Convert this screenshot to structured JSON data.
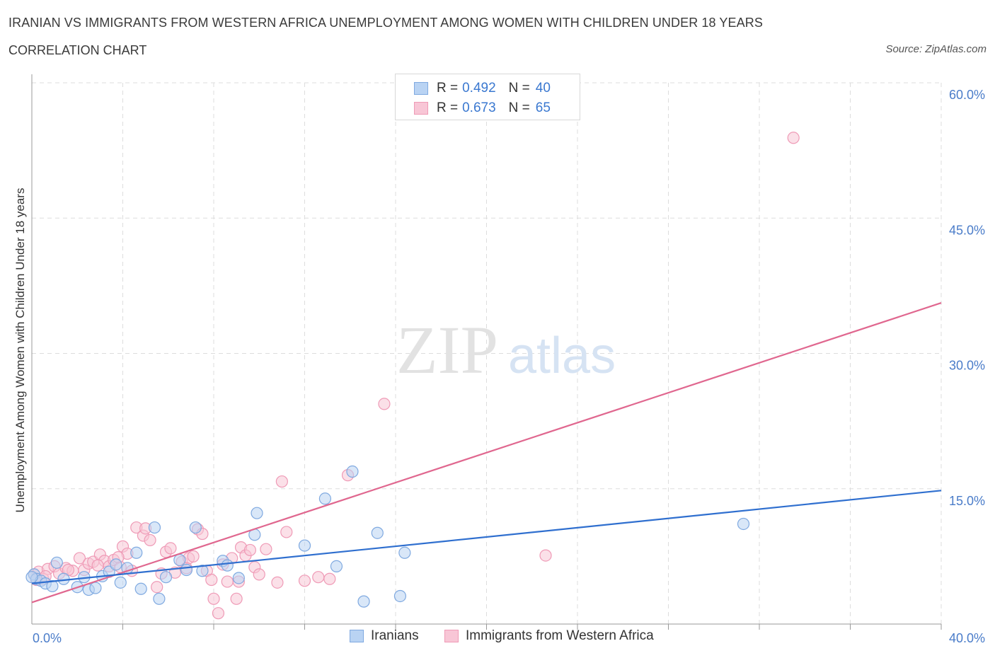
{
  "header": {
    "title": "IRANIAN VS IMMIGRANTS FROM WESTERN AFRICA UNEMPLOYMENT AMONG WOMEN WITH CHILDREN UNDER 18 YEARS",
    "subtitle": "CORRELATION CHART",
    "source": "Source: ZipAtlas.com"
  },
  "watermark": {
    "zip": "ZIP",
    "atlas": "atlas"
  },
  "legend": {
    "rows": [
      {
        "r_label": "R =",
        "r_value": "0.492",
        "n_label": "N =",
        "n_value": "40"
      },
      {
        "r_label": "R =",
        "r_value": "0.673",
        "n_label": "N =",
        "n_value": "65"
      }
    ]
  },
  "colors": {
    "iranians_fill": "#b9d3f3",
    "iranians_stroke": "#7fa9e0",
    "iranians_line": "#2f6fcf",
    "wafrica_fill": "#f8c6d6",
    "wafrica_stroke": "#ef9ab6",
    "wafrica_line": "#e0678f",
    "tick_text": "#4a7cc9",
    "grid": "#dddddd"
  },
  "chart_data": {
    "type": "scatter",
    "title": "IRANIAN VS IMMIGRANTS FROM WESTERN AFRICA UNEMPLOYMENT AMONG WOMEN WITH CHILDREN UNDER 18 YEARS",
    "xlabel": "",
    "ylabel": "Unemployment Among Women with Children Under 18 years",
    "xlim": [
      0,
      40
    ],
    "ylim": [
      0,
      60
    ],
    "x_tick_labels": [
      "0.0%",
      "40.0%"
    ],
    "y_ticks": [
      15,
      30,
      45,
      60
    ],
    "y_tick_labels": [
      "15.0%",
      "30.0%",
      "45.0%",
      "60.0%"
    ],
    "legend_position": "top-center",
    "series": [
      {
        "name": "Iranians",
        "R": 0.492,
        "N": 40,
        "trend": {
          "x0": 0,
          "y0": 4.5,
          "x1": 40,
          "y1": 14.8
        },
        "points": [
          [
            0.1,
            5.5
          ],
          [
            0.2,
            5.0
          ],
          [
            0.4,
            4.8
          ],
          [
            0.6,
            4.5
          ],
          [
            0.9,
            4.2
          ],
          [
            1.1,
            6.8
          ],
          [
            1.4,
            5.0
          ],
          [
            2.0,
            4.1
          ],
          [
            2.3,
            5.2
          ],
          [
            2.5,
            3.8
          ],
          [
            2.8,
            4.0
          ],
          [
            3.1,
            5.3
          ],
          [
            3.4,
            5.8
          ],
          [
            3.7,
            6.6
          ],
          [
            3.9,
            4.6
          ],
          [
            4.2,
            6.2
          ],
          [
            4.6,
            7.9
          ],
          [
            4.8,
            3.9
          ],
          [
            5.4,
            10.7
          ],
          [
            5.6,
            2.8
          ],
          [
            5.9,
            5.2
          ],
          [
            6.5,
            7.1
          ],
          [
            6.8,
            6.0
          ],
          [
            7.2,
            10.7
          ],
          [
            7.5,
            5.9
          ],
          [
            8.4,
            7.0
          ],
          [
            8.6,
            6.5
          ],
          [
            9.1,
            5.1
          ],
          [
            9.8,
            9.9
          ],
          [
            9.9,
            12.3
          ],
          [
            12.0,
            8.7
          ],
          [
            12.9,
            13.9
          ],
          [
            13.4,
            6.4
          ],
          [
            14.1,
            16.9
          ],
          [
            14.6,
            2.5
          ],
          [
            15.2,
            10.1
          ],
          [
            16.2,
            3.1
          ],
          [
            16.4,
            7.9
          ],
          [
            31.3,
            11.1
          ],
          [
            0.0,
            5.2
          ]
        ]
      },
      {
        "name": "Immigrants from Western Africa",
        "R": 0.673,
        "N": 65,
        "trend": {
          "x0": 0,
          "y0": 2.4,
          "x1": 40,
          "y1": 35.6
        },
        "points": [
          [
            0.1,
            5.5
          ],
          [
            0.3,
            5.8
          ],
          [
            0.5,
            5.0
          ],
          [
            0.7,
            6.1
          ],
          [
            1.0,
            6.4
          ],
          [
            1.2,
            5.6
          ],
          [
            1.5,
            6.2
          ],
          [
            1.8,
            5.9
          ],
          [
            2.1,
            7.3
          ],
          [
            2.3,
            6.0
          ],
          [
            2.5,
            6.7
          ],
          [
            2.7,
            6.9
          ],
          [
            3.0,
            7.7
          ],
          [
            3.2,
            7.0
          ],
          [
            3.4,
            6.4
          ],
          [
            3.6,
            7.1
          ],
          [
            3.9,
            6.3
          ],
          [
            4.0,
            8.6
          ],
          [
            4.2,
            7.8
          ],
          [
            4.4,
            5.9
          ],
          [
            4.6,
            10.7
          ],
          [
            4.9,
            9.8
          ],
          [
            5.0,
            10.6
          ],
          [
            5.2,
            9.3
          ],
          [
            5.5,
            4.1
          ],
          [
            5.7,
            5.6
          ],
          [
            5.9,
            8.0
          ],
          [
            6.1,
            8.4
          ],
          [
            6.3,
            5.7
          ],
          [
            6.6,
            6.9
          ],
          [
            6.9,
            7.3
          ],
          [
            7.1,
            7.5
          ],
          [
            7.3,
            10.5
          ],
          [
            7.5,
            10.0
          ],
          [
            7.7,
            5.9
          ],
          [
            7.9,
            4.9
          ],
          [
            8.0,
            2.8
          ],
          [
            8.2,
            1.2
          ],
          [
            8.4,
            6.6
          ],
          [
            8.6,
            4.7
          ],
          [
            8.8,
            7.3
          ],
          [
            9.0,
            2.8
          ],
          [
            9.2,
            8.5
          ],
          [
            9.4,
            7.6
          ],
          [
            9.6,
            8.2
          ],
          [
            9.8,
            6.3
          ],
          [
            10.0,
            5.5
          ],
          [
            10.3,
            8.3
          ],
          [
            10.8,
            4.6
          ],
          [
            11.0,
            15.8
          ],
          [
            11.2,
            10.2
          ],
          [
            12.0,
            4.8
          ],
          [
            12.6,
            5.2
          ],
          [
            13.1,
            5.0
          ],
          [
            13.9,
            16.5
          ],
          [
            15.5,
            24.4
          ],
          [
            22.6,
            7.6
          ],
          [
            33.5,
            53.9
          ],
          [
            0.2,
            4.9
          ],
          [
            0.6,
            5.3
          ],
          [
            1.6,
            6.0
          ],
          [
            2.9,
            6.5
          ],
          [
            3.8,
            7.4
          ],
          [
            6.8,
            6.2
          ],
          [
            9.1,
            4.7
          ]
        ]
      }
    ]
  },
  "bottom_legend": {
    "iranians": "Iranians",
    "wafrica": "Immigrants from Western Africa"
  }
}
